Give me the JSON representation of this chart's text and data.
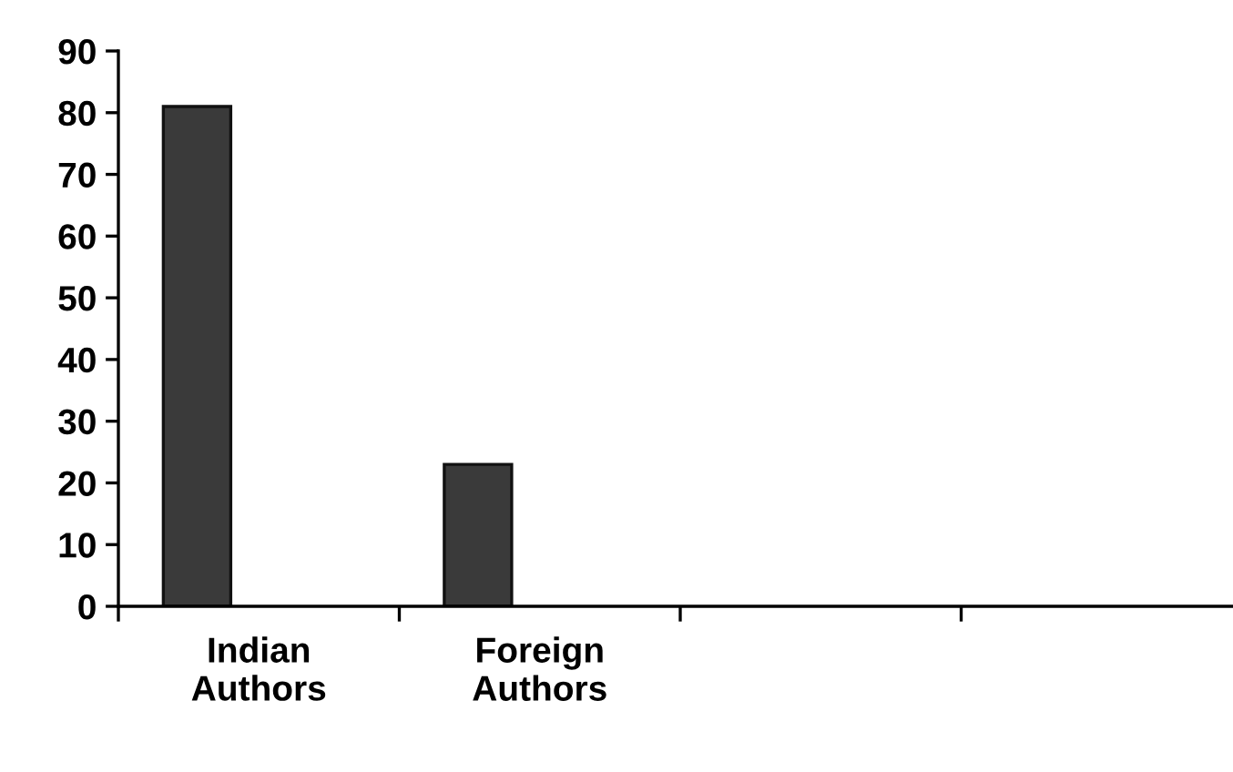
{
  "chart_data": {
    "type": "bar",
    "categories": [
      "Indian\nAuthors",
      "Foreign\nAuthors",
      null,
      null
    ],
    "values": [
      81,
      23,
      null,
      null
    ],
    "color": "#3a3a3a",
    "ylim": [
      0,
      90
    ],
    "yticks": [
      0,
      10,
      20,
      30,
      40,
      50,
      60,
      70,
      80,
      90
    ],
    "grid": false
  }
}
